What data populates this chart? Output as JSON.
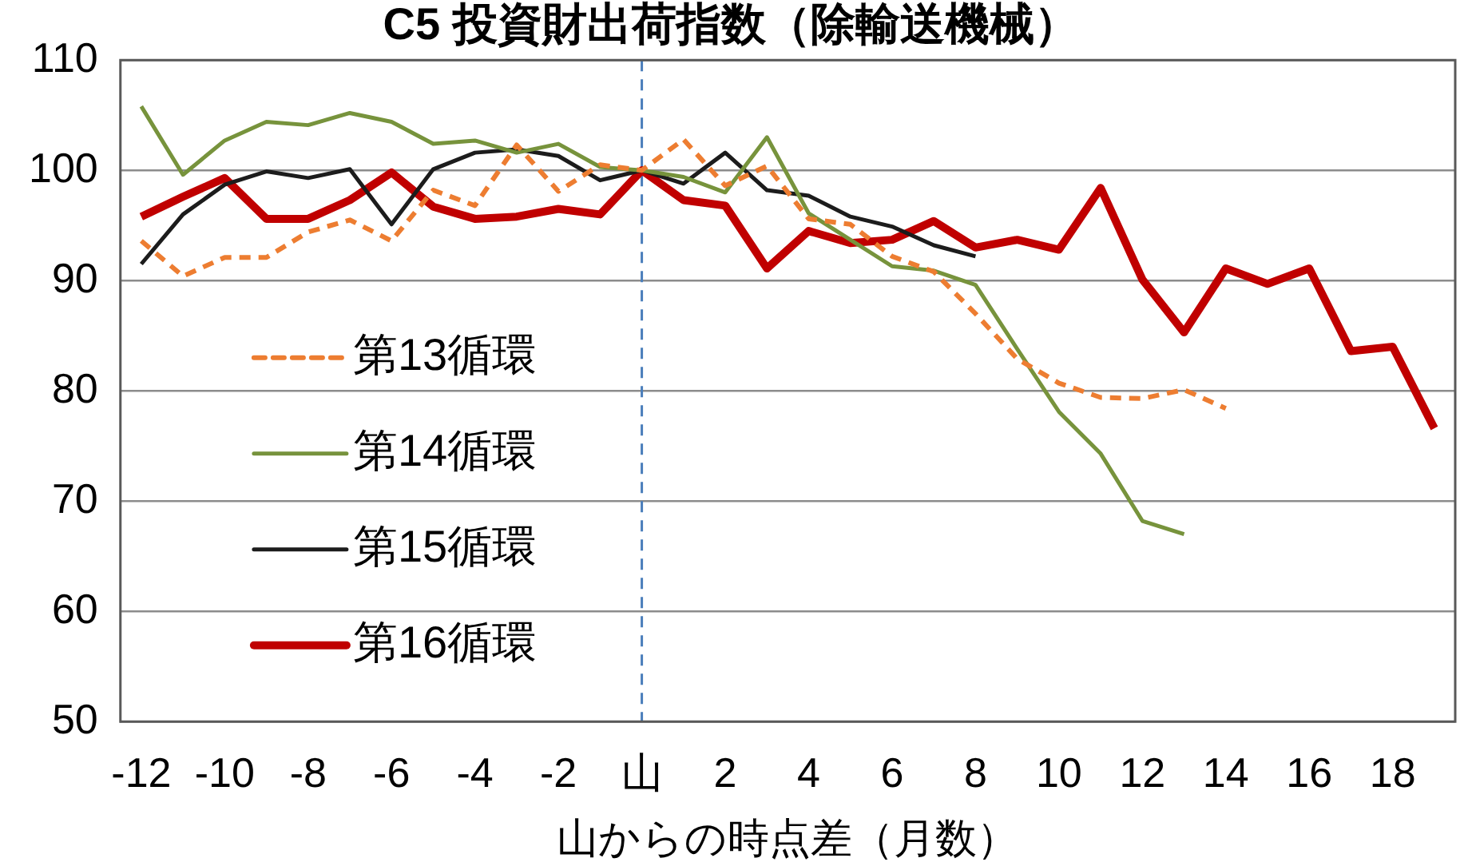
{
  "chart_data": {
    "type": "line",
    "title": "C5 投資財出荷指数（除輸送機械）",
    "xlabel": "山からの時点差（月数）",
    "categories": [
      "-12",
      null,
      "-10",
      null,
      "-8",
      null,
      "-6",
      null,
      "-4",
      null,
      "-2",
      null,
      "山",
      null,
      "2",
      null,
      "4",
      null,
      "6",
      null,
      "8",
      null,
      "10",
      null,
      "12",
      null,
      "14",
      null,
      "16",
      null,
      "18",
      null
    ],
    "series": [
      {
        "name": "第13循環",
        "color": "#ed7d31",
        "line_style": "dashed",
        "values": [
          93.6,
          90.4,
          92.1,
          92.1,
          94.4,
          95.5,
          93.6,
          98.2,
          96.8,
          102.3,
          98.1,
          100.5,
          100,
          102.8,
          98.6,
          100.4,
          95.6,
          95.1,
          92.2,
          90.8,
          87.0,
          82.9,
          80.7,
          79.4,
          79.3,
          80.1,
          78.4,
          null,
          null,
          null,
          null,
          null
        ]
      },
      {
        "name": "第14循環",
        "color": "#77933c",
        "line_style": "solid",
        "values": [
          105.8,
          99.6,
          102.7,
          104.4,
          104.1,
          105.2,
          104.4,
          102.4,
          102.7,
          101.6,
          102.4,
          100.3,
          100,
          99.4,
          98.0,
          103.0,
          96.1,
          93.7,
          91.3,
          90.9,
          89.6,
          83.8,
          78.1,
          74.3,
          68.2,
          67.0,
          null,
          null,
          null,
          null,
          null,
          null
        ]
      },
      {
        "name": "第15循環",
        "color": "#1c1c1c",
        "line_style": "solid",
        "values": [
          91.5,
          96.0,
          98.7,
          99.9,
          99.3,
          100.1,
          95.1,
          100.1,
          101.6,
          101.9,
          101.3,
          99.1,
          100,
          98.8,
          101.6,
          98.2,
          97.7,
          95.8,
          94.9,
          93.2,
          92.2,
          null,
          null,
          null,
          null,
          null,
          null,
          null,
          null,
          null,
          null,
          null
        ]
      },
      {
        "name": "第16循環",
        "color": "#c00000",
        "line_style": "solid",
        "values": [
          95.8,
          97.6,
          99.3,
          95.6,
          95.6,
          97.3,
          99.8,
          96.7,
          95.6,
          95.8,
          96.5,
          96.0,
          100,
          97.3,
          96.8,
          91.1,
          94.5,
          93.4,
          93.7,
          95.4,
          93.0,
          93.7,
          92.8,
          98.4,
          90.1,
          85.3,
          91.1,
          89.7,
          91.1,
          83.6,
          84.0,
          76.6
        ]
      }
    ],
    "ylim": [
      50,
      110
    ],
    "yticks": [
      50,
      60,
      70,
      80,
      90,
      100,
      110
    ],
    "grid": "y",
    "legend": "left",
    "marker": "none",
    "ref_lines": [
      {
        "axis": "x",
        "value": "山",
        "color": "#4a7ebb",
        "line_style": "dashed"
      }
    ]
  }
}
